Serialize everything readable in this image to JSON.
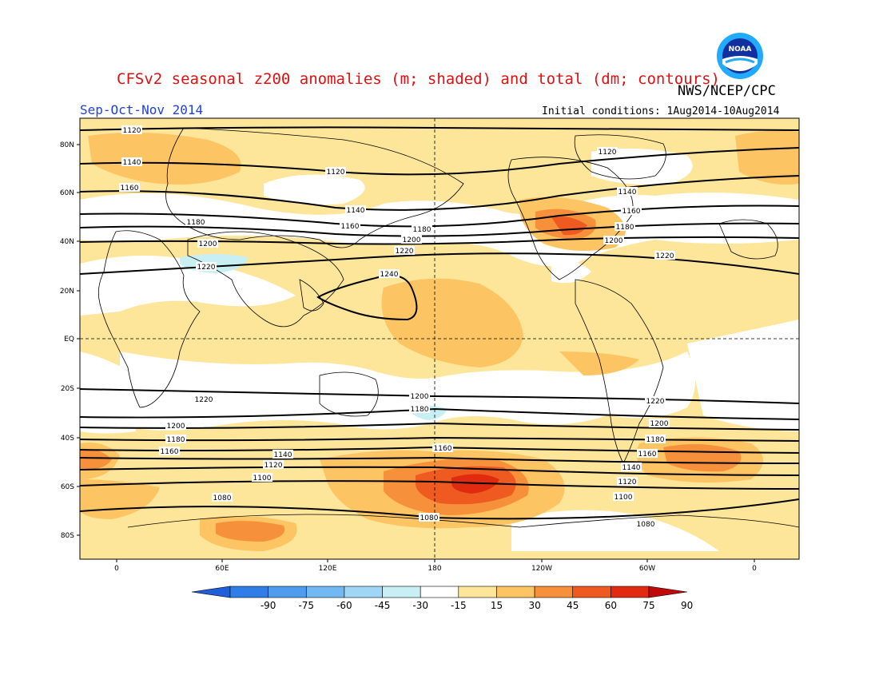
{
  "title": "CFSv2 seasonal z200 anomalies (m; shaded) and total (dm; contours)",
  "agency": "NWS/NCEP/CPC",
  "season": "Sep-Oct-Nov 2014",
  "initial_conditions": "Initial conditions: 1Aug2014-10Aug2014",
  "logo": {
    "text": "NOAA",
    "color_outer": "#22aaff",
    "color_inner": "#1030a0"
  },
  "map": {
    "lon_labels": [
      "0",
      "60E",
      "120E",
      "180",
      "120W",
      "60W",
      "0"
    ],
    "lat_labels": [
      "80N",
      "60N",
      "40N",
      "20N",
      "EQ",
      "20S",
      "40S",
      "60S",
      "80S"
    ],
    "contours": [
      {
        "value": "1120",
        "labels": [
          "1120",
          "1120",
          "1120"
        ]
      },
      {
        "value": "1140",
        "labels": [
          "1140",
          "1140",
          "1140"
        ]
      },
      {
        "value": "1160",
        "labels": [
          "1160",
          "1160",
          "1160"
        ]
      },
      {
        "value": "1180",
        "labels": [
          "1180",
          "1180",
          "1180"
        ]
      },
      {
        "value": "1200",
        "labels": [
          "1200",
          "1200",
          "1200"
        ]
      },
      {
        "value": "1220",
        "labels": [
          "1220",
          "1220",
          "1220"
        ]
      },
      {
        "value": "1240",
        "labels": [
          "1240"
        ]
      },
      {
        "value": "1220",
        "labels": [
          "1220",
          "1220"
        ]
      },
      {
        "value": "1200",
        "labels": [
          "1200",
          "1200"
        ]
      },
      {
        "value": "1180",
        "labels": [
          "1180",
          "1180"
        ]
      },
      {
        "value": "1200",
        "labels": [
          "1200"
        ]
      },
      {
        "value": "1180",
        "labels": [
          "1180"
        ]
      },
      {
        "value": "1160",
        "labels": [
          "1160",
          "1160",
          "1160"
        ]
      },
      {
        "value": "1140",
        "labels": [
          "1140",
          "1140"
        ]
      },
      {
        "value": "1120",
        "labels": [
          "1120",
          "1120"
        ]
      },
      {
        "value": "1100",
        "labels": [
          "1100",
          "1100"
        ]
      },
      {
        "value": "1080",
        "labels": [
          "1080",
          "1080",
          "1080"
        ]
      }
    ]
  },
  "colorbar": {
    "labels": [
      "-90",
      "-75",
      "-60",
      "-45",
      "-30",
      "-15",
      "15",
      "30",
      "45",
      "60",
      "75",
      "90"
    ],
    "colors": [
      "#1f5fd8",
      "#2f7de6",
      "#4f9bee",
      "#72b9f3",
      "#9fd6f5",
      "#c8f0f4",
      "#ffffff",
      "#fde59a",
      "#fdc464",
      "#f7903a",
      "#ee5a1f",
      "#e02b10",
      "#c00a0a"
    ]
  },
  "colors": {
    "c15": "#fde59a",
    "c30": "#fdc464",
    "c45": "#f7903a",
    "c60": "#ee5a1f",
    "c75": "#e02b10",
    "neg15": "#c8f0f4",
    "neg30": "#9fd6f5",
    "title": "#e01010",
    "season": "#2040e0"
  }
}
